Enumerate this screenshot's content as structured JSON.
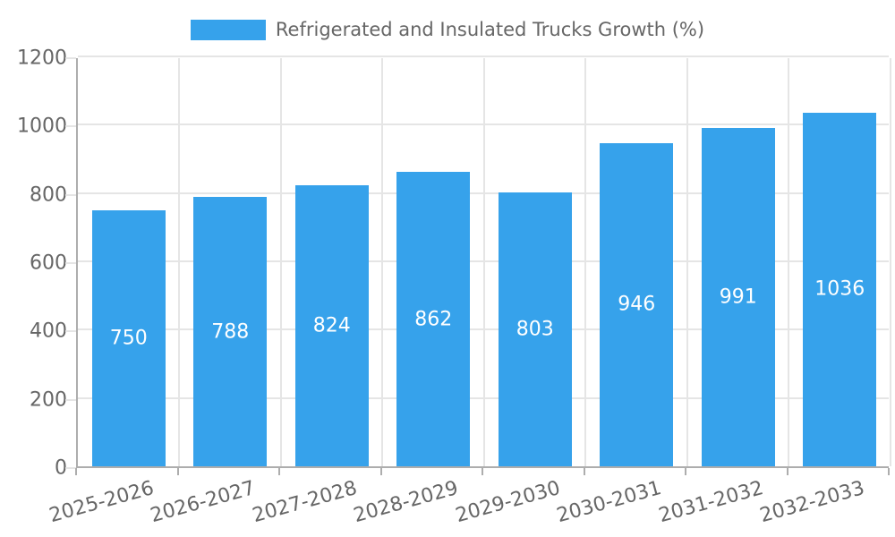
{
  "chart_data": {
    "type": "bar",
    "title": "",
    "legend_label": "Refrigerated and Insulated Trucks Growth (%)",
    "legend_position": "top-center",
    "categories": [
      "2025-2026",
      "2026-2027",
      "2027-2028",
      "2028-2029",
      "2029-2030",
      "2030-2031",
      "2031-2032",
      "2032-2033"
    ],
    "values": [
      750,
      788,
      824,
      862,
      803,
      946,
      991,
      1036
    ],
    "xlabel": "",
    "ylabel": "",
    "ylim": [
      0,
      1200
    ],
    "yticks": [
      0,
      200,
      400,
      600,
      800,
      1000,
      1200
    ],
    "grid": true,
    "value_labels": "centered-inside-bars",
    "colors": {
      "bar": "#36A2EB",
      "value_label": "#FFFFFF",
      "axis_text": "#666666",
      "legend_text": "#666666",
      "gridline": "#E5E5E5",
      "axis_line": "#ADADAD"
    }
  }
}
